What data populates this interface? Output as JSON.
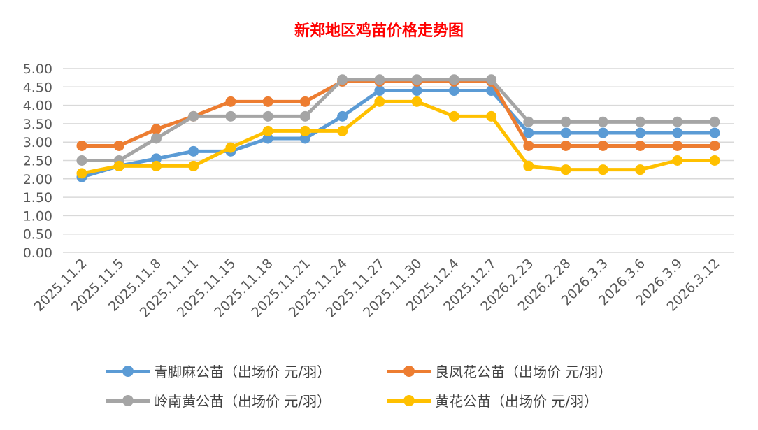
{
  "chart_data": {
    "type": "line",
    "title": "新郑地区鸡苗价格走势图",
    "xlabel": "",
    "ylabel": "",
    "ylim": [
      0,
      5
    ],
    "yticks": [
      "0.00",
      "0.50",
      "1.00",
      "1.50",
      "2.00",
      "2.50",
      "3.00",
      "3.50",
      "4.00",
      "4.50",
      "5.00"
    ],
    "grid": true,
    "legend_position": "bottom",
    "categories": [
      "2025.11.2",
      "2025.11.5",
      "2025.11.8",
      "2025.11.11",
      "2025.11.15",
      "2025.11.18",
      "2025.11.21",
      "2025.11.24",
      "2025.11.27",
      "2025.11.30",
      "2025.12.4",
      "2025.12.7",
      "2026.2.23",
      "2026.2.28",
      "2026.3.3",
      "2026.3.6",
      "2026.3.9",
      "2026.3.12"
    ],
    "series": [
      {
        "name": "青脚麻公苗（出场价 元/羽）",
        "color": "#5b9bd5",
        "values": [
          2.05,
          2.35,
          2.55,
          2.75,
          2.75,
          3.1,
          3.1,
          3.7,
          4.4,
          4.4,
          4.4,
          4.4,
          3.25,
          3.25,
          3.25,
          3.25,
          3.25,
          3.25
        ]
      },
      {
        "name": "良凤花公苗（出场价 元/羽）",
        "color": "#ed7d31",
        "values": [
          2.9,
          2.9,
          3.35,
          3.7,
          4.1,
          4.1,
          4.1,
          4.65,
          4.65,
          4.65,
          4.65,
          4.65,
          2.9,
          2.9,
          2.9,
          2.9,
          2.9,
          2.9
        ]
      },
      {
        "name": "岭南黄公苗（出场价 元/羽）",
        "color": "#a5a5a5",
        "values": [
          2.5,
          2.5,
          3.1,
          3.7,
          3.7,
          3.7,
          3.7,
          4.7,
          4.7,
          4.7,
          4.7,
          4.7,
          3.55,
          3.55,
          3.55,
          3.55,
          3.55,
          3.55
        ]
      },
      {
        "name": "黄花公苗（出场价 元/羽）",
        "color": "#ffc000",
        "values": [
          2.15,
          2.35,
          2.35,
          2.35,
          2.85,
          3.3,
          3.3,
          3.3,
          4.1,
          4.1,
          3.7,
          3.7,
          2.35,
          2.25,
          2.25,
          2.25,
          2.5,
          2.5
        ]
      }
    ]
  }
}
